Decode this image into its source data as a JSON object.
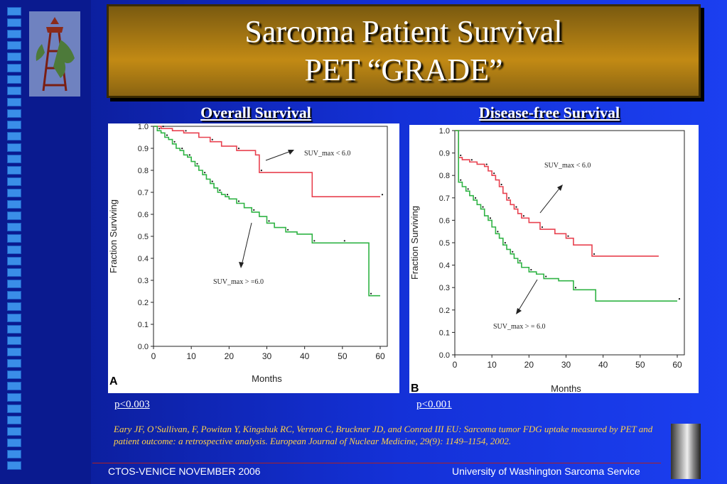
{
  "title": {
    "line1": "Sarcoma Patient Survival",
    "line2": "PET “GRADE”"
  },
  "headers": {
    "left": "Overall Survival",
    "right": "Disease-free Survival"
  },
  "pvalues": {
    "left": "p<0.003",
    "right": "p<0.001"
  },
  "citation": "Eary JF, O’Sullivan, F, Powitan Y, Kingshuk RC, Vernon C, Bruckner JD, and Conrad III EU:  Sarcoma tumor FDG uptake measured by PET and patient outcome: a retrospective analysis.  European Journal of Nuclear Medicine, 29(9): 1149–1154, 2002.",
  "footer": {
    "left": "CTOS-VENICE  NOVEMBER 2006",
    "right": "University  of Washington Sarcoma Service"
  },
  "colors": {
    "high_suv": "#e8414f",
    "low_suv": "#2fb344"
  },
  "chart_data": [
    {
      "type": "line",
      "panel_label": "A",
      "xlabel": "Months",
      "ylabel": "Fraction  Surviving",
      "xlim": [
        0,
        60
      ],
      "ylim": [
        0,
        1.0
      ],
      "xticks": [
        "0",
        "10",
        "20",
        "30",
        "40",
        "50",
        "60"
      ],
      "yticks": [
        "0.0",
        "0.1",
        "0.2",
        "0.3",
        "0.4",
        "0.5",
        "0.6",
        "0.7",
        "0.8",
        "0.9",
        "1.0"
      ],
      "annotations": [
        "SUV_max < 6.0",
        "SUV_max > =6.0"
      ],
      "series": [
        {
          "name": "SUV_max < 6.0",
          "x": [
            0,
            2,
            5,
            8,
            12,
            15,
            18,
            22,
            27,
            28,
            42,
            60
          ],
          "y": [
            1.0,
            0.99,
            0.98,
            0.97,
            0.95,
            0.93,
            0.91,
            0.89,
            0.87,
            0.79,
            0.68,
            0.68
          ]
        },
        {
          "name": "SUV_max > =6.0",
          "x": [
            0,
            1,
            2,
            3,
            4,
            5,
            6,
            7,
            8,
            9,
            10,
            11,
            12,
            13,
            14,
            15,
            16,
            17,
            18,
            19,
            20,
            22,
            24,
            26,
            28,
            30,
            32,
            35,
            38,
            42,
            45,
            50,
            56,
            57,
            60
          ],
          "y": [
            1.0,
            0.98,
            0.97,
            0.95,
            0.94,
            0.92,
            0.9,
            0.89,
            0.87,
            0.86,
            0.84,
            0.82,
            0.8,
            0.78,
            0.76,
            0.74,
            0.72,
            0.7,
            0.69,
            0.68,
            0.67,
            0.65,
            0.63,
            0.61,
            0.59,
            0.56,
            0.54,
            0.52,
            0.51,
            0.47,
            0.47,
            0.47,
            0.47,
            0.23,
            0.23
          ]
        }
      ]
    },
    {
      "type": "line",
      "panel_label": "B",
      "xlabel": "Months",
      "ylabel": "Fraction  Surviving",
      "xlim": [
        0,
        60
      ],
      "ylim": [
        0,
        1.0
      ],
      "xticks": [
        "0",
        "10",
        "20",
        "30",
        "40",
        "50",
        "60"
      ],
      "yticks": [
        "0.0",
        "0.1",
        "0.2",
        "0.3",
        "0.4",
        "0.5",
        "0.6",
        "0.7",
        "0.8",
        "0.9",
        "1.0"
      ],
      "annotations": [
        "SUV_max < 6.0",
        "SUV_max > = 6.0"
      ],
      "series": [
        {
          "name": "SUV_max < 6.0",
          "x": [
            0,
            1,
            2,
            4,
            6,
            8,
            9,
            10,
            11,
            12,
            13,
            14,
            15,
            16,
            17,
            18,
            20,
            23,
            27,
            30,
            32,
            37,
            55
          ],
          "y": [
            1.0,
            0.88,
            0.87,
            0.86,
            0.85,
            0.84,
            0.82,
            0.8,
            0.78,
            0.75,
            0.72,
            0.69,
            0.67,
            0.65,
            0.63,
            0.61,
            0.59,
            0.56,
            0.54,
            0.52,
            0.49,
            0.44,
            0.44
          ]
        },
        {
          "name": "SUV_max > = 6.0",
          "x": [
            0,
            1,
            2,
            3,
            4,
            5,
            6,
            7,
            8,
            9,
            10,
            11,
            12,
            13,
            14,
            15,
            16,
            17,
            18,
            20,
            22,
            24,
            28,
            32,
            38,
            60
          ],
          "y": [
            1.0,
            0.77,
            0.75,
            0.73,
            0.71,
            0.69,
            0.67,
            0.65,
            0.62,
            0.6,
            0.57,
            0.54,
            0.52,
            0.49,
            0.47,
            0.45,
            0.43,
            0.41,
            0.39,
            0.37,
            0.36,
            0.34,
            0.33,
            0.29,
            0.24,
            0.24
          ]
        }
      ]
    }
  ]
}
